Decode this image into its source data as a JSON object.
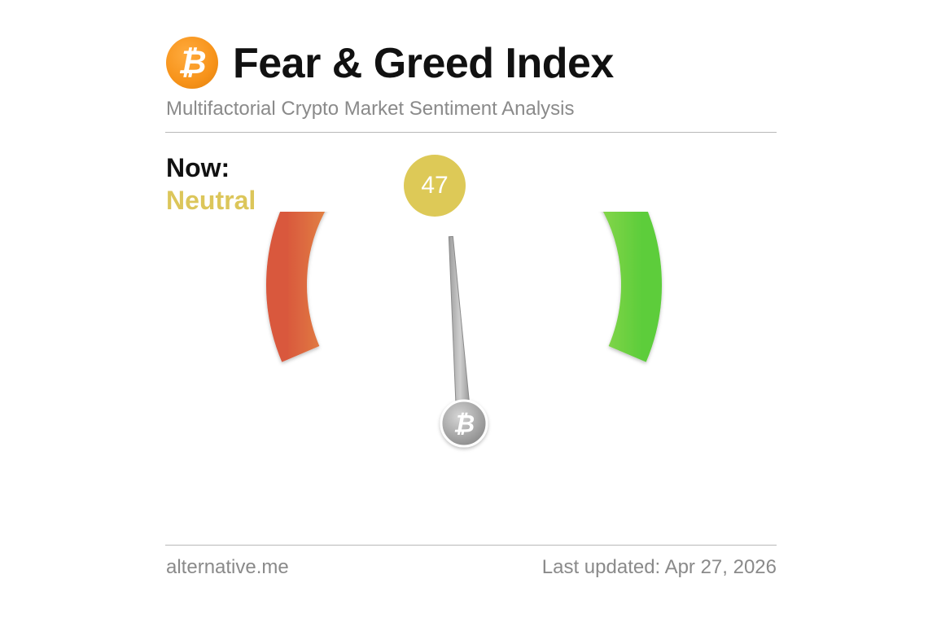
{
  "header": {
    "logo_symbol": "₿",
    "logo_icon": "bitcoin-icon",
    "title": "Fear & Greed Index",
    "subtitle": "Multifactorial Crypto Market Sentiment Analysis"
  },
  "current": {
    "label": "Now:",
    "classification": "Neutral",
    "value": "47",
    "value_color": "#ddc957"
  },
  "gauge": {
    "min": 0,
    "max": 100,
    "value": 47,
    "hub_symbol": "₿",
    "colors": [
      "#d9583d",
      "#ecb34c",
      "#e8d44d",
      "#a7df57",
      "#5dcd3b"
    ]
  },
  "footer": {
    "source": "alternative.me",
    "updated": "Last updated: Apr 27, 2026"
  }
}
